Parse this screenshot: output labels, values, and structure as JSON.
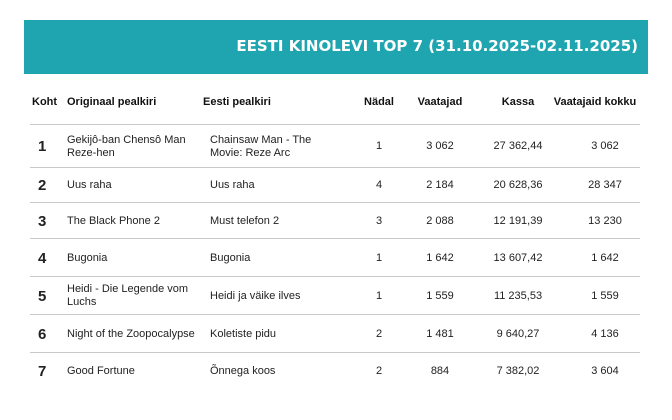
{
  "banner": {
    "title": "EESTI KINOLEVI TOP 7 (31.10.2025-02.11.2025)"
  },
  "table": {
    "headers": [
      "Koht",
      "Originaal pealkiri",
      "Eesti pealkiri",
      "Nädal",
      "Vaatajad",
      "Kassa",
      "Vaatajaid kokku"
    ],
    "rows": [
      {
        "rank": "1",
        "original": "Gekijô-ban Chensô Man Reze-hen",
        "estonian": "Chainsaw Man - The Movie: Reze Arc",
        "week": "1",
        "viewers": "3 062",
        "box_office": "27 362,44",
        "total": "3 062"
      },
      {
        "rank": "2",
        "original": "Uus raha",
        "estonian": "Uus raha",
        "week": "4",
        "viewers": "2 184",
        "box_office": "20 628,36",
        "total": "28 347"
      },
      {
        "rank": "3",
        "original": "The Black Phone 2",
        "estonian": "Must telefon 2",
        "week": "3",
        "viewers": "2 088",
        "box_office": "12 191,39",
        "total": "13 230"
      },
      {
        "rank": "4",
        "original": "Bugonia",
        "estonian": "Bugonia",
        "week": "1",
        "viewers": "1 642",
        "box_office": "13 607,42",
        "total": "1 642"
      },
      {
        "rank": "5",
        "original": "Heidi - Die Legende vom Luchs",
        "estonian": "Heidi ja väike ilves",
        "week": "1",
        "viewers": "1 559",
        "box_office": "11 235,53",
        "total": "1 559"
      },
      {
        "rank": "6",
        "original": "Night of the Zoopocalypse",
        "estonian": "Koletiste pidu",
        "week": "2",
        "viewers": "1 481",
        "box_office": "9 640,27",
        "total": "4 136"
      },
      {
        "rank": "7",
        "original": "Good Fortune",
        "estonian": "Õnnega koos",
        "week": "2",
        "viewers": "884",
        "box_office": "7 382,02",
        "total": "3 604"
      }
    ]
  }
}
